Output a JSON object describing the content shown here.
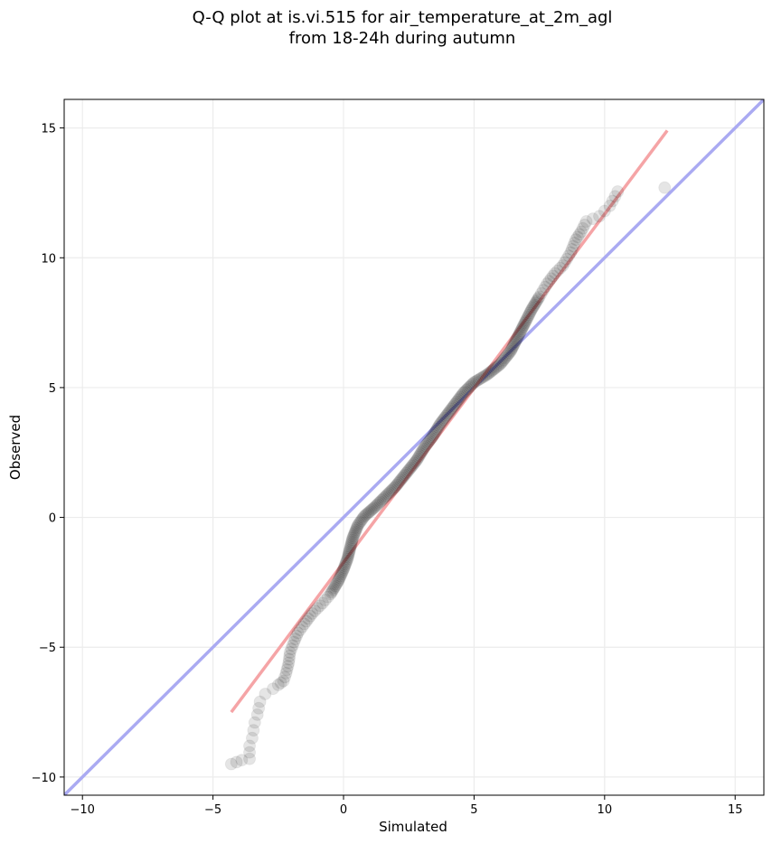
{
  "chart_data": {
    "type": "scatter",
    "title_line1": "Q-Q plot at is.vi.515 for air_temperature_at_2m_agl",
    "title_line2": "from 18-24h during autumn",
    "xlabel": "Simulated",
    "ylabel": "Observed",
    "xlim": [
      -10.7,
      16.1
    ],
    "ylim": [
      -10.7,
      16.1
    ],
    "xticks": [
      -10,
      -5,
      0,
      5,
      10,
      15
    ],
    "yticks": [
      -10,
      -5,
      0,
      5,
      10,
      15
    ],
    "xtick_labels": [
      "−10",
      "−5",
      "0",
      "5",
      "10",
      "15"
    ],
    "ytick_labels": [
      "−10",
      "−5",
      "0",
      "5",
      "10",
      "15"
    ],
    "grid": true,
    "reference_line": {
      "name": "1:1",
      "color": "#aaaaf2",
      "points": [
        [
          -10.7,
          -10.7
        ],
        [
          16.1,
          16.1
        ]
      ]
    },
    "fit_line": {
      "color": "#f5a4a6",
      "points": [
        [
          -4.3,
          -7.5
        ],
        [
          12.4,
          14.9
        ]
      ]
    },
    "points_color": "#000000",
    "quantiles": [
      [
        -4.3,
        -9.5
      ],
      [
        -3.9,
        -9.35
      ],
      [
        -3.6,
        -9.3
      ],
      [
        -3.6,
        -8.8
      ],
      [
        -3.5,
        -8.5
      ],
      [
        -3.4,
        -7.9
      ],
      [
        -3.3,
        -7.6
      ],
      [
        -3.2,
        -7.1
      ],
      [
        -3.0,
        -6.8
      ],
      [
        -2.7,
        -6.6
      ],
      [
        -2.5,
        -6.45
      ],
      [
        -2.3,
        -6.3
      ],
      [
        -2.2,
        -6.0
      ],
      [
        -2.1,
        -5.6
      ],
      [
        -2.05,
        -5.2
      ],
      [
        -1.9,
        -4.8
      ],
      [
        -1.75,
        -4.45
      ],
      [
        -1.5,
        -4.1
      ],
      [
        -1.2,
        -3.7
      ],
      [
        -0.8,
        -3.3
      ],
      [
        -0.5,
        -2.95
      ],
      [
        -0.2,
        -2.45
      ],
      [
        0.0,
        -2.0
      ],
      [
        0.15,
        -1.6
      ],
      [
        0.25,
        -1.2
      ],
      [
        0.35,
        -0.8
      ],
      [
        0.55,
        -0.3
      ],
      [
        0.8,
        0.05
      ],
      [
        1.2,
        0.4
      ],
      [
        1.6,
        0.8
      ],
      [
        2.0,
        1.2
      ],
      [
        2.4,
        1.7
      ],
      [
        2.8,
        2.2
      ],
      [
        3.1,
        2.7
      ],
      [
        3.4,
        3.1
      ],
      [
        3.7,
        3.6
      ],
      [
        4.0,
        4.0
      ],
      [
        4.3,
        4.4
      ],
      [
        4.6,
        4.8
      ],
      [
        5.0,
        5.2
      ],
      [
        5.5,
        5.5
      ],
      [
        6.0,
        5.9
      ],
      [
        6.4,
        6.4
      ],
      [
        6.7,
        7.0
      ],
      [
        7.0,
        7.6
      ],
      [
        7.2,
        8.0
      ],
      [
        7.5,
        8.5
      ],
      [
        7.8,
        9.0
      ],
      [
        8.1,
        9.4
      ],
      [
        8.4,
        9.7
      ],
      [
        8.7,
        10.2
      ],
      [
        8.9,
        10.7
      ],
      [
        9.1,
        11.0
      ],
      [
        9.3,
        11.4
      ],
      [
        9.8,
        11.6
      ],
      [
        10.2,
        12.0
      ],
      [
        10.5,
        12.55
      ],
      [
        12.3,
        12.7
      ]
    ]
  }
}
